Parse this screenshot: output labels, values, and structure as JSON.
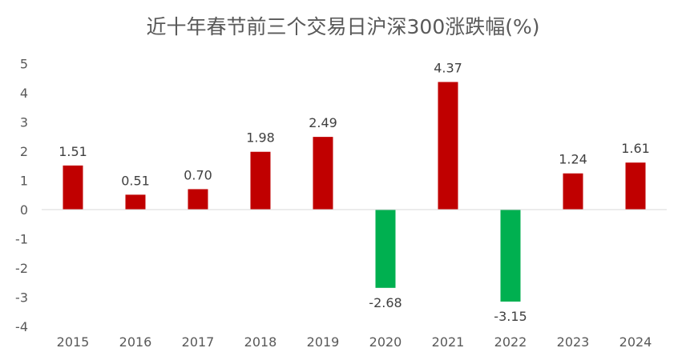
{
  "chart_data": {
    "type": "bar",
    "title": "近十年春节前三个交易日沪深300涨跌幅(%)",
    "categories": [
      "2015",
      "2016",
      "2017",
      "2018",
      "2019",
      "2020",
      "2021",
      "2022",
      "2023",
      "2024"
    ],
    "values": [
      1.51,
      0.51,
      0.7,
      1.98,
      2.49,
      -2.68,
      4.37,
      -3.15,
      1.24,
      1.61
    ],
    "data_labels": [
      "1.51",
      "0.51",
      "0.70",
      "1.98",
      "2.49",
      "-2.68",
      "4.37",
      "-3.15",
      "1.24",
      "1.61"
    ],
    "ylim": [
      -4,
      5
    ],
    "yticks": [
      "5",
      "4",
      "3",
      "2",
      "1",
      "0",
      "-1",
      "-2",
      "-3",
      "-4"
    ],
    "grid": false,
    "legend": "none",
    "colors": {
      "positive": "#C00000",
      "negative": "#00B050",
      "axis": "#D9D9D9"
    }
  }
}
